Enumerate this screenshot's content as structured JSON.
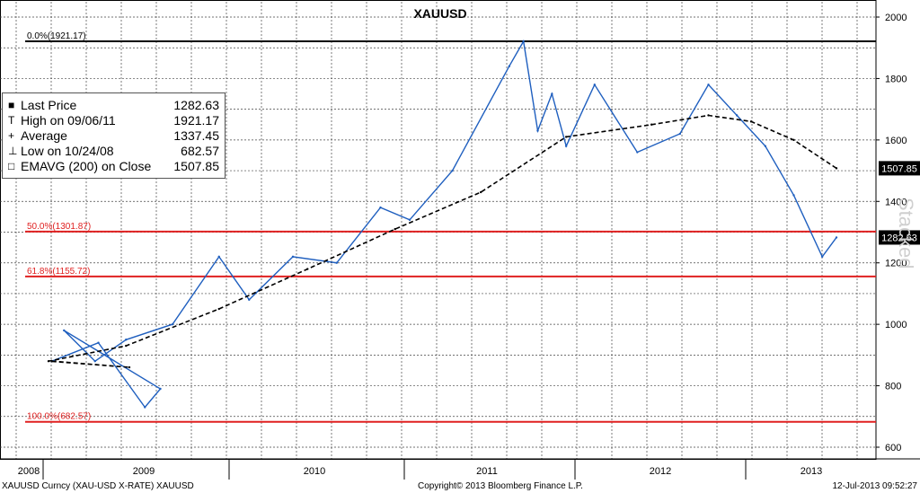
{
  "chart_data": {
    "type": "line",
    "title": "XAUUSD",
    "ylim": [
      580,
      2050
    ],
    "y_ticks": [
      "600",
      "800",
      "1000",
      "1200",
      "1400",
      "1600",
      "1800",
      "2000"
    ],
    "x_year_labels": [
      "2008",
      "2009",
      "2010",
      "2011",
      "2012",
      "2013"
    ],
    "grid": true,
    "watermark": "Stacked",
    "series": [
      {
        "name": "Last Price",
        "color": "#1f5fbf",
        "x": [
          "2008-04",
          "2008-07",
          "2008-10",
          "2008-11",
          "2009-02",
          "2009-04",
          "2009-06",
          "2009-09",
          "2009-12",
          "2010-02",
          "2010-05",
          "2010-08",
          "2010-11",
          "2011-01",
          "2011-04",
          "2011-08",
          "2011-09",
          "2011-10",
          "2011-11",
          "2011-12",
          "2012-02",
          "2012-05",
          "2012-08",
          "2012-10",
          "2012-12",
          "2013-02",
          "2013-04",
          "2013-06",
          "2013-07"
        ],
        "values": [
          880,
          940,
          730,
          790,
          980,
          880,
          950,
          1000,
          1220,
          1080,
          1220,
          1200,
          1380,
          1340,
          1500,
          1840,
          1921.17,
          1630,
          1750,
          1580,
          1780,
          1560,
          1620,
          1780,
          1680,
          1580,
          1420,
          1220,
          1282.63
        ]
      },
      {
        "name": "EMAVG (200) on Close",
        "color": "#000000",
        "dashed": true,
        "x": [
          "2008-04",
          "2008-09",
          "2009-01",
          "2009-06",
          "2009-12",
          "2010-06",
          "2010-12",
          "2011-06",
          "2011-12",
          "2012-06",
          "2012-10",
          "2013-01",
          "2013-04",
          "2013-07"
        ],
        "values": [
          880,
          860,
          880,
          930,
          1050,
          1180,
          1310,
          1430,
          1610,
          1650,
          1680,
          1660,
          1600,
          1507.85
        ]
      }
    ],
    "fib_levels": [
      {
        "label": "0.0%(1921.17)",
        "value": 1921.17,
        "color": "#000000"
      },
      {
        "label": "50.0%(1301.87)",
        "value": 1301.87,
        "color": "#e02020"
      },
      {
        "label": "61.8%(1155.72)",
        "value": 1155.72,
        "color": "#e02020"
      },
      {
        "label": "100.0%(682.57)",
        "value": 682.57,
        "color": "#e02020"
      }
    ],
    "axis_badges": [
      {
        "label": "1507.85",
        "value": 1507.85
      },
      {
        "label": "1282.63",
        "value": 1282.63
      }
    ]
  },
  "legend": {
    "items": [
      {
        "symbol": "■",
        "label": "Last Price",
        "value": "1282.63"
      },
      {
        "symbol": "T",
        "label": "High on 09/06/11",
        "value": "1921.17"
      },
      {
        "symbol": "+",
        "label": "Average",
        "value": "1337.45"
      },
      {
        "symbol": "⊥",
        "label": "Low on 10/24/08",
        "value": "682.57"
      },
      {
        "symbol": "□",
        "label": "EMAVG (200) on Close",
        "value": "1507.85"
      }
    ]
  },
  "footer": {
    "left": "XAUUSD Curncy (XAU-USD X-RATE) XAUUSD",
    "middle": "Copyright© 2013 Bloomberg Finance L.P.",
    "right": "12-Jul-2013 09:52:27"
  }
}
